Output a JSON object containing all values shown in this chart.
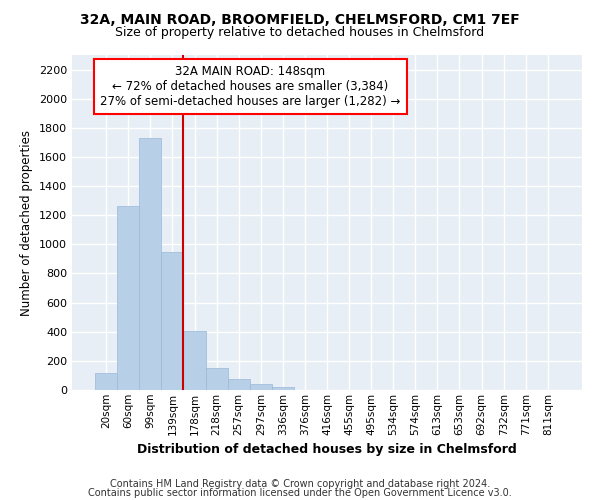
{
  "title1": "32A, MAIN ROAD, BROOMFIELD, CHELMSFORD, CM1 7EF",
  "title2": "Size of property relative to detached houses in Chelmsford",
  "xlabel": "Distribution of detached houses by size in Chelmsford",
  "ylabel": "Number of detached properties",
  "bar_color": "#b8cfe8",
  "bar_edge_color": "#9ab8d8",
  "background_color": "#e8eef5",
  "grid_color": "#ffffff",
  "annotation_line1": "32A MAIN ROAD: 148sqm",
  "annotation_line2": "← 72% of detached houses are smaller (3,384)",
  "annotation_line3": "27% of semi-detached houses are larger (1,282) →",
  "vline_color": "#cc0000",
  "categories": [
    "20sqm",
    "60sqm",
    "99sqm",
    "139sqm",
    "178sqm",
    "218sqm",
    "257sqm",
    "297sqm",
    "336sqm",
    "376sqm",
    "416sqm",
    "455sqm",
    "495sqm",
    "534sqm",
    "574sqm",
    "613sqm",
    "653sqm",
    "692sqm",
    "732sqm",
    "771sqm",
    "811sqm"
  ],
  "values": [
    115,
    1265,
    1730,
    945,
    405,
    150,
    75,
    42,
    22,
    0,
    0,
    0,
    0,
    0,
    0,
    0,
    0,
    0,
    0,
    0,
    0
  ],
  "ylim": [
    0,
    2300
  ],
  "yticks": [
    0,
    200,
    400,
    600,
    800,
    1000,
    1200,
    1400,
    1600,
    1800,
    2000,
    2200
  ],
  "footnote1": "Contains HM Land Registry data © Crown copyright and database right 2024.",
  "footnote2": "Contains public sector information licensed under the Open Government Licence v3.0.",
  "fig_background": "#ffffff"
}
